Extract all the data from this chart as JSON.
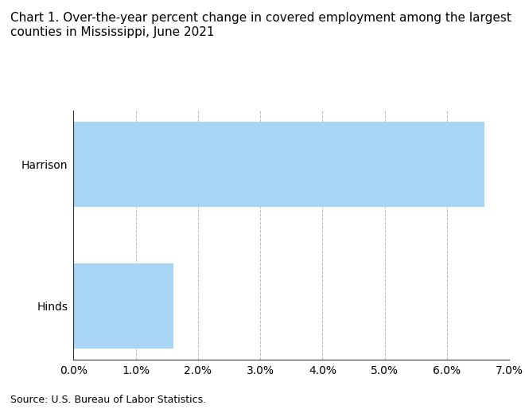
{
  "title_line1": "Chart 1. Over-the-year percent change in covered employment among the largest",
  "title_line2": "counties in Mississippi, June 2021",
  "categories": [
    "Hinds",
    "Harrison"
  ],
  "values": [
    1.6,
    6.6
  ],
  "bar_color": "#a8d4f5",
  "bar_edgecolor": "#a8d4f5",
  "xlim": [
    0.0,
    0.07
  ],
  "xticks": [
    0.0,
    0.01,
    0.02,
    0.03,
    0.04,
    0.05,
    0.06,
    0.07
  ],
  "xticklabels": [
    "0.0%",
    "1.0%",
    "2.0%",
    "3.0%",
    "4.0%",
    "5.0%",
    "6.0%",
    "7.0%"
  ],
  "source_text": "Source: U.S. Bureau of Labor Statistics.",
  "title_fontsize": 11,
  "tick_fontsize": 10,
  "source_fontsize": 9,
  "background_color": "#ffffff",
  "grid_color": "#aaaaaa",
  "spine_color": "#333333",
  "bar_height": 0.6
}
